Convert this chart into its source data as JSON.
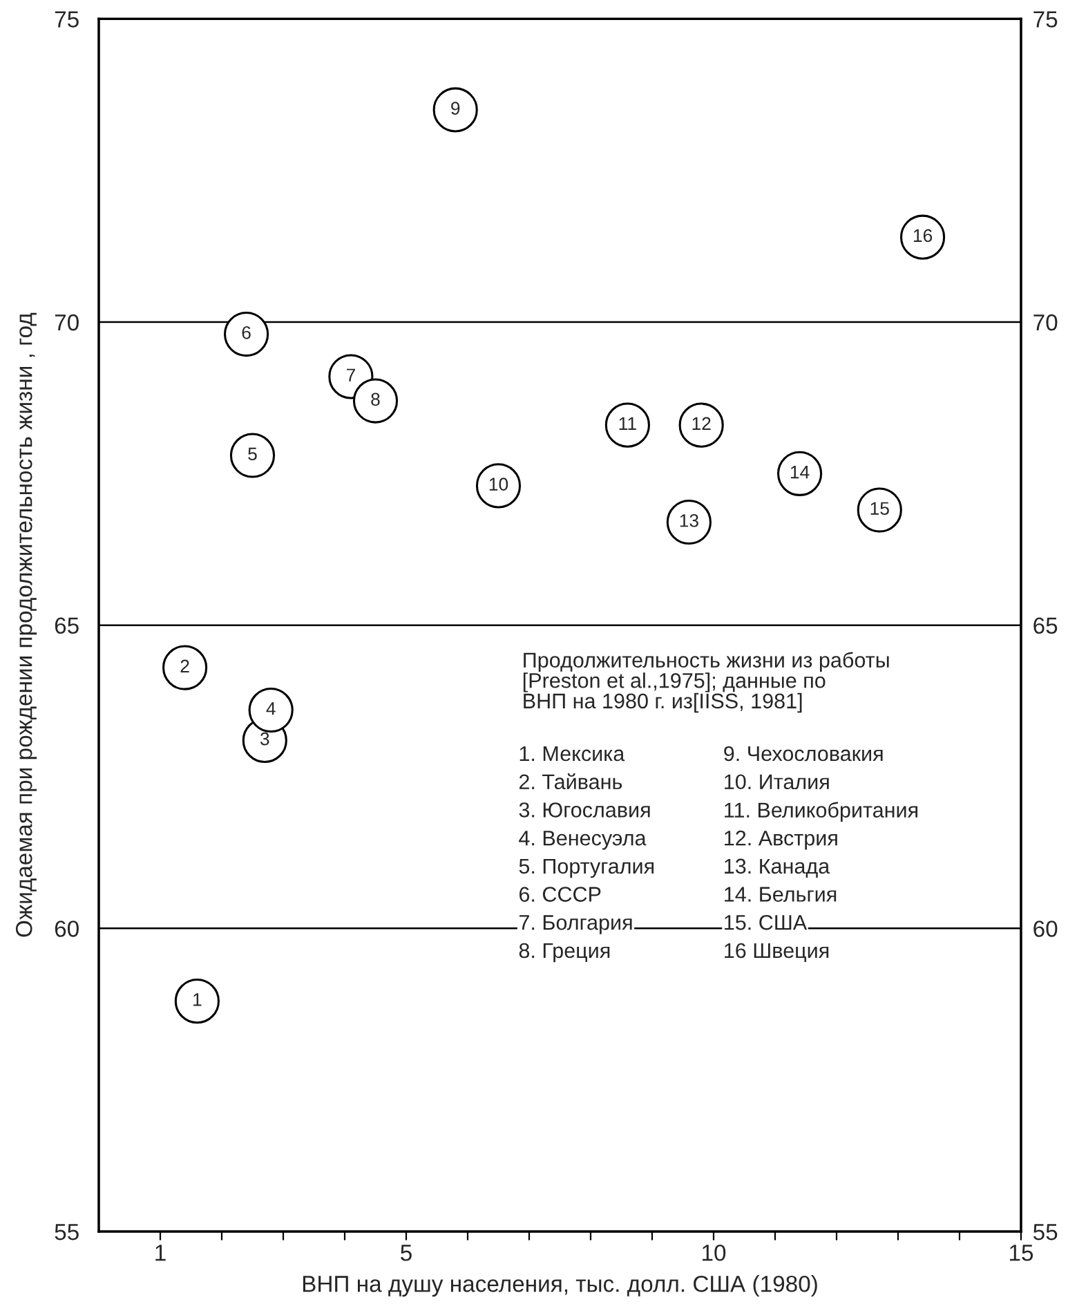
{
  "chart_data": {
    "type": "scatter",
    "xlabel": "ВНП на душу населения, тыс. долл. США (1980)",
    "ylabel": "Ожидаемая при рождении продолжительность жизни , год",
    "x": [
      1.6,
      1.4,
      2.7,
      2.8,
      2.5,
      2.4,
      4.1,
      4.5,
      5.8,
      6.5,
      8.6,
      9.8,
      9.6,
      11.4,
      12.7,
      13.4
    ],
    "series": [
      {
        "color": "#000000",
        "values": [
          58.8,
          64.3,
          63.1,
          63.6,
          67.8,
          69.8,
          69.1,
          68.7,
          73.5,
          67.3,
          68.3,
          68.3,
          66.7,
          67.5,
          66.9,
          71.4
        ]
      }
    ],
    "xlim": [
      0,
      15
    ],
    "xticks": [
      1,
      {
        "value": 2,
        "label": null
      },
      {
        "value": 3,
        "label": null
      },
      {
        "value": 4,
        "label": null
      },
      5,
      {
        "value": 6,
        "label": null
      },
      {
        "value": 7,
        "label": null
      },
      {
        "value": 8,
        "label": null
      },
      {
        "value": 9,
        "label": null
      },
      10,
      {
        "value": 11,
        "label": null
      },
      {
        "value": 12,
        "label": null
      },
      {
        "value": 13,
        "label": null
      },
      {
        "value": 14,
        "label": null
      },
      15
    ],
    "ylim": [
      55,
      75
    ],
    "yticks": [
      55,
      60,
      65,
      70,
      75
    ],
    "y2lim": [
      55,
      75
    ],
    "y2ticks": [
      55,
      60,
      65,
      70,
      75
    ],
    "grid": "y",
    "marker": "circle",
    "annotations": [
      "Продолжительность жизни из работы\n[Preston et al.,1975]; данные по\nВНП на 1980 г. из[IISS, 1981]",
      "1. Мексика",
      "2. Тайвань",
      "3. Югославия",
      "4. Венесуэла",
      "5. Португалия",
      "6. СССР",
      "7. Болгария",
      "8. Греция",
      "9. Чехословакия",
      "10. Италия",
      "11. Великобритания",
      "12. Австрия",
      "13. Канада",
      "14. Бельгия",
      "15. США",
      "16 Швеция",
      {
        "text": "1",
        "x": 1.6,
        "y": 58.8
      },
      {
        "text": "2",
        "x": 1.4,
        "y": 64.3
      },
      {
        "text": "3",
        "x": 2.7,
        "y": 63.1
      },
      {
        "text": "4",
        "x": 2.8,
        "y": 63.6
      },
      {
        "text": "5",
        "x": 2.5,
        "y": 67.8
      },
      {
        "text": "6",
        "x": 2.4,
        "y": 69.8
      },
      {
        "text": "7",
        "x": 4.1,
        "y": 69.1
      },
      {
        "text": "8",
        "x": 4.5,
        "y": 68.7
      },
      {
        "text": "9",
        "x": 5.8,
        "y": 73.5
      },
      {
        "text": "10",
        "x": 6.5,
        "y": 67.3
      },
      {
        "text": "11",
        "x": 8.6,
        "y": 68.3
      },
      {
        "text": "12",
        "x": 9.8,
        "y": 68.3
      },
      {
        "text": "13",
        "x": 9.6,
        "y": 66.7
      },
      {
        "text": "14",
        "x": 11.4,
        "y": 67.5
      },
      {
        "text": "15",
        "x": 12.7,
        "y": 66.9
      },
      {
        "text": "16",
        "x": 13.4,
        "y": 71.4
      }
    ]
  }
}
